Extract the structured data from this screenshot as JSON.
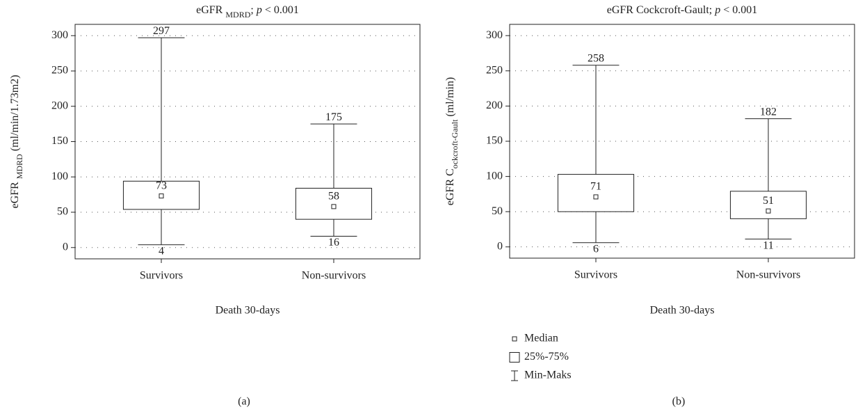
{
  "chart_data": [
    {
      "type": "box",
      "title": [
        "eGFR ",
        "MDRD",
        "; ",
        "p",
        " < 0.001"
      ],
      "ylabel": [
        "eGFR ",
        "MDRD",
        " (ml/min/1.73m2)"
      ],
      "xlabel": "Death 30-days",
      "categories": [
        "Survivors",
        "Non-survivors"
      ],
      "boxes": [
        {
          "min": 4,
          "q1": 54,
          "median": 73,
          "q3": 94,
          "max": 297
        },
        {
          "min": 16,
          "q1": 40,
          "median": 58,
          "q3": 84,
          "max": 175
        }
      ],
      "color": "#222222",
      "ylim": [
        -16,
        316
      ],
      "yticks": [
        0,
        50,
        100,
        150,
        200,
        250,
        300
      ],
      "grid": true,
      "caption": "(a)"
    },
    {
      "type": "box",
      "title": [
        "eGFR Cockcroft-Gault; ",
        "p",
        " < 0.001"
      ],
      "ylabel": [
        "eGFR C",
        "ockcroft-Gault",
        " (ml/min)"
      ],
      "xlabel": "Death 30-days",
      "categories": [
        "Survivors",
        "Non-survivors"
      ],
      "boxes": [
        {
          "min": 6,
          "q1": 50,
          "median": 71,
          "q3": 103,
          "max": 258
        },
        {
          "min": 11,
          "q1": 40,
          "median": 51,
          "q3": 79,
          "max": 182
        }
      ],
      "color": "#222222",
      "ylim": [
        -16,
        316
      ],
      "yticks": [
        0,
        50,
        100,
        150,
        200,
        250,
        300
      ],
      "grid": true,
      "legend": [
        "Median",
        "25%-75%",
        "Min-Maks"
      ],
      "caption": "(b)"
    }
  ]
}
